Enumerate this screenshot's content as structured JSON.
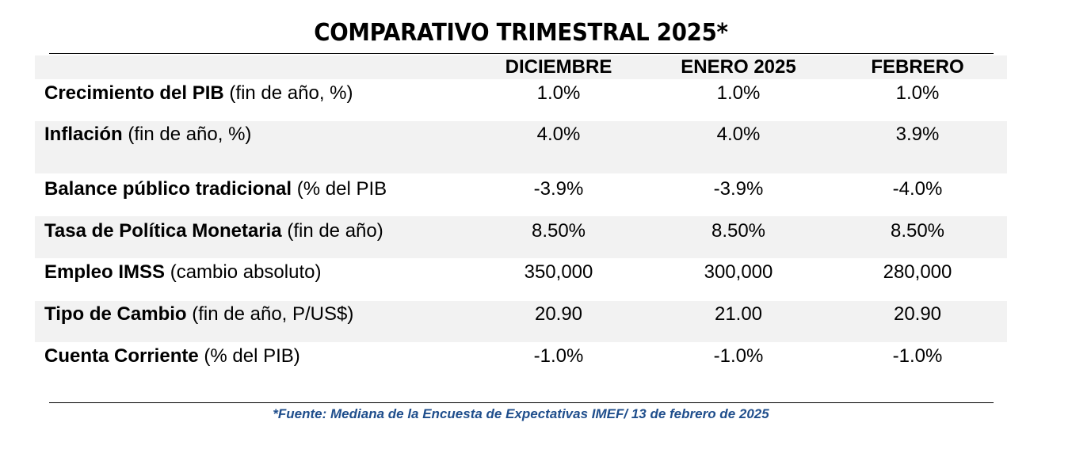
{
  "title": "COMPARATIVO TRIMESTRAL 2025*",
  "columns": [
    "DICIEMBRE",
    "ENERO 2025",
    "FEBRERO"
  ],
  "rows": [
    {
      "label_bold": "Crecimiento del PIB",
      "label_rest": " (fin de año, %)",
      "values": [
        "1.0%",
        "1.0%",
        "1.0%"
      ]
    },
    {
      "label_bold": "Inflación",
      "label_rest": " (fin de año, %)",
      "values": [
        "4.0%",
        "4.0%",
        "3.9%"
      ]
    },
    {
      "label_bold": "Balance público tradicional",
      "label_rest": " (% del PIB",
      "values": [
        "-3.9%",
        "-3.9%",
        "-4.0%"
      ]
    },
    {
      "label_bold": "Tasa de Política Monetaria",
      "label_rest": " (fin de año)",
      "values": [
        "8.50%",
        "8.50%",
        "8.50%"
      ]
    },
    {
      "label_bold": "Empleo IMSS",
      "label_rest": " (cambio absoluto)",
      "values": [
        "350,000",
        "300,000",
        "280,000"
      ]
    },
    {
      "label_bold": "Tipo de Cambio",
      "label_rest": " (fin de año, P/US$)",
      "values": [
        "20.90",
        "21.00",
        "20.90"
      ]
    },
    {
      "label_bold": "Cuenta Corriente",
      "label_rest": " (% del PIB)",
      "values": [
        "-1.0%",
        "-1.0%",
        "-1.0%"
      ]
    }
  ],
  "footnote": "*Fuente: Mediana de la Encuesta de Expectativas IMEF/ 13 de febrero de 2025",
  "colors": {
    "band": "#f2f2f2",
    "footnote": "#1f4e8c"
  }
}
